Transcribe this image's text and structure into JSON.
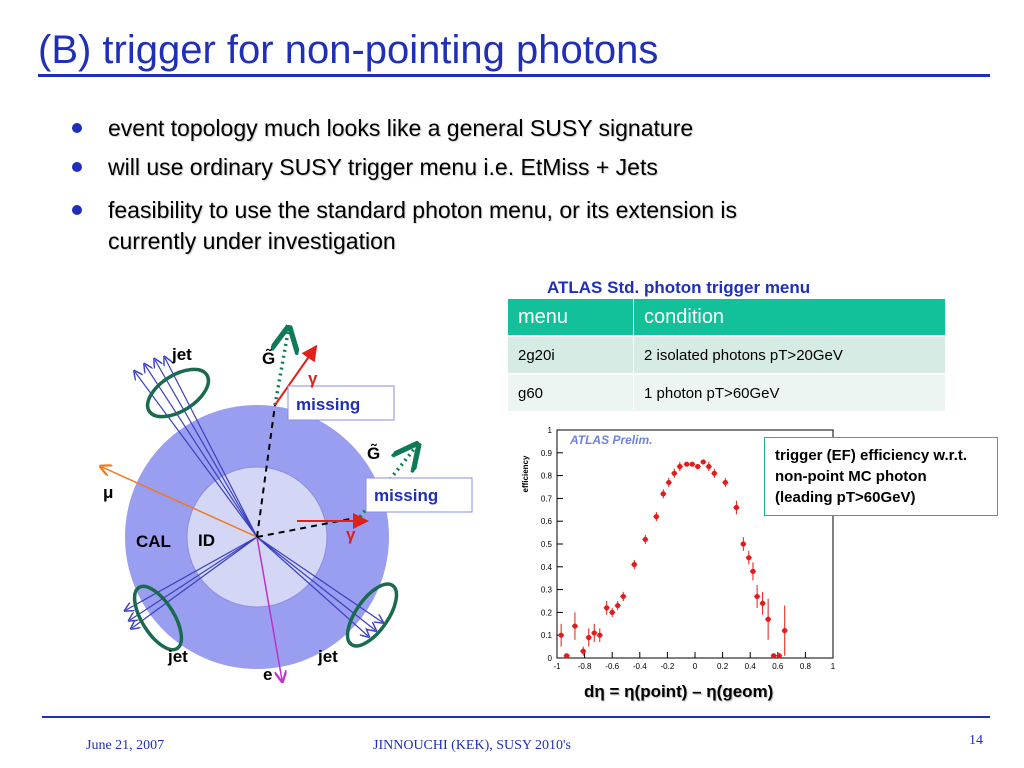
{
  "slide": {
    "title": "(B) trigger for non-pointing photons",
    "bullets": [
      "event topology much looks like a general SUSY signature",
      "will use ordinary SUSY trigger menu i.e. EtMiss + Jets",
      "feasibility to use the standard photon menu, or its extension is currently under investigation"
    ]
  },
  "trigger_menu": {
    "caption": "ATLAS Std. photon trigger menu",
    "headers": [
      "menu",
      "condition"
    ],
    "rows": [
      [
        "2g20i",
        "2 isolated photons pT>20GeV"
      ],
      [
        "g60",
        "1 photon pT>60GeV"
      ]
    ]
  },
  "diagram": {
    "labels": {
      "jet_top": "jet",
      "jet_bottom_left": "jet",
      "jet_bottom_right": "jet",
      "gluino_top": "G̃",
      "gluino_right": "G̃",
      "gamma_top": "γ",
      "gamma_right": "γ",
      "missing_top": "missing",
      "missing_right": "missing",
      "muon": "μ",
      "electron": "e",
      "cal": "CAL",
      "id": "ID"
    },
    "colors": {
      "calorimeter": "#9a9ef0",
      "inner_detector": "#d4d6f6",
      "jet_ellipse": "#1a6a50",
      "gluino_dotted": "#0f7a55",
      "photon": "#e0201a",
      "muon": "#ee7a22",
      "electron": "#c030c8"
    }
  },
  "efficiency_plot": {
    "inset_label": "ATLAS Prelim.",
    "y_axis_title": "efficiency",
    "x_axis_formula": "dη = η(point) – η(geom)",
    "note": "trigger (EF) efficiency w.r.t. non-point MC photon (leading pT>60GeV)"
  },
  "chart_data": {
    "type": "scatter",
    "xlabel": "dη = η(point) – η(geom)",
    "ylabel": "efficiency",
    "xlim": [
      -1,
      1
    ],
    "ylim": [
      0,
      1
    ],
    "x_ticks": [
      "-1",
      "-0.8",
      "-0.6",
      "-0.4",
      "-0.2",
      "0",
      "0.2",
      "0.4",
      "0.6",
      "0.8",
      "1"
    ],
    "y_ticks": [
      "0",
      "0.1",
      "0.2",
      "0.3",
      "0.4",
      "0.5",
      "0.6",
      "0.7",
      "0.8",
      "0.9",
      "1"
    ],
    "grid": false,
    "marker_color": "#e21b1b",
    "points": [
      {
        "x": -0.97,
        "y": 0.1,
        "err": 0.05
      },
      {
        "x": -0.93,
        "y": 0.01,
        "err": 0.01
      },
      {
        "x": -0.87,
        "y": 0.14,
        "err": 0.06
      },
      {
        "x": -0.81,
        "y": 0.03,
        "err": 0.02
      },
      {
        "x": -0.77,
        "y": 0.09,
        "err": 0.04
      },
      {
        "x": -0.73,
        "y": 0.11,
        "err": 0.04
      },
      {
        "x": -0.69,
        "y": 0.1,
        "err": 0.03
      },
      {
        "x": -0.64,
        "y": 0.22,
        "err": 0.03
      },
      {
        "x": -0.6,
        "y": 0.2,
        "err": 0.02
      },
      {
        "x": -0.56,
        "y": 0.23,
        "err": 0.02
      },
      {
        "x": -0.52,
        "y": 0.27,
        "err": 0.02
      },
      {
        "x": -0.44,
        "y": 0.41,
        "err": 0.02
      },
      {
        "x": -0.36,
        "y": 0.52,
        "err": 0.02
      },
      {
        "x": -0.28,
        "y": 0.62,
        "err": 0.02
      },
      {
        "x": -0.23,
        "y": 0.72,
        "err": 0.02
      },
      {
        "x": -0.19,
        "y": 0.77,
        "err": 0.02
      },
      {
        "x": -0.15,
        "y": 0.81,
        "err": 0.02
      },
      {
        "x": -0.11,
        "y": 0.84,
        "err": 0.02
      },
      {
        "x": -0.06,
        "y": 0.85,
        "err": 0.01
      },
      {
        "x": -0.02,
        "y": 0.85,
        "err": 0.01
      },
      {
        "x": 0.02,
        "y": 0.84,
        "err": 0.01
      },
      {
        "x": 0.06,
        "y": 0.86,
        "err": 0.01
      },
      {
        "x": 0.1,
        "y": 0.84,
        "err": 0.02
      },
      {
        "x": 0.14,
        "y": 0.81,
        "err": 0.02
      },
      {
        "x": 0.22,
        "y": 0.77,
        "err": 0.02
      },
      {
        "x": 0.3,
        "y": 0.66,
        "err": 0.03
      },
      {
        "x": 0.35,
        "y": 0.5,
        "err": 0.03
      },
      {
        "x": 0.39,
        "y": 0.44,
        "err": 0.03
      },
      {
        "x": 0.42,
        "y": 0.38,
        "err": 0.04
      },
      {
        "x": 0.45,
        "y": 0.27,
        "err": 0.05
      },
      {
        "x": 0.49,
        "y": 0.24,
        "err": 0.05
      },
      {
        "x": 0.53,
        "y": 0.17,
        "err": 0.09
      },
      {
        "x": 0.57,
        "y": 0.01,
        "err": 0.01
      },
      {
        "x": 0.61,
        "y": 0.01,
        "err": 0.01
      },
      {
        "x": 0.65,
        "y": 0.12,
        "err": 0.11
      }
    ]
  },
  "footer": {
    "date": "June 21,  2007",
    "author": "JINNOUCHI (KEK), SUSY 2010's",
    "page": "14"
  }
}
